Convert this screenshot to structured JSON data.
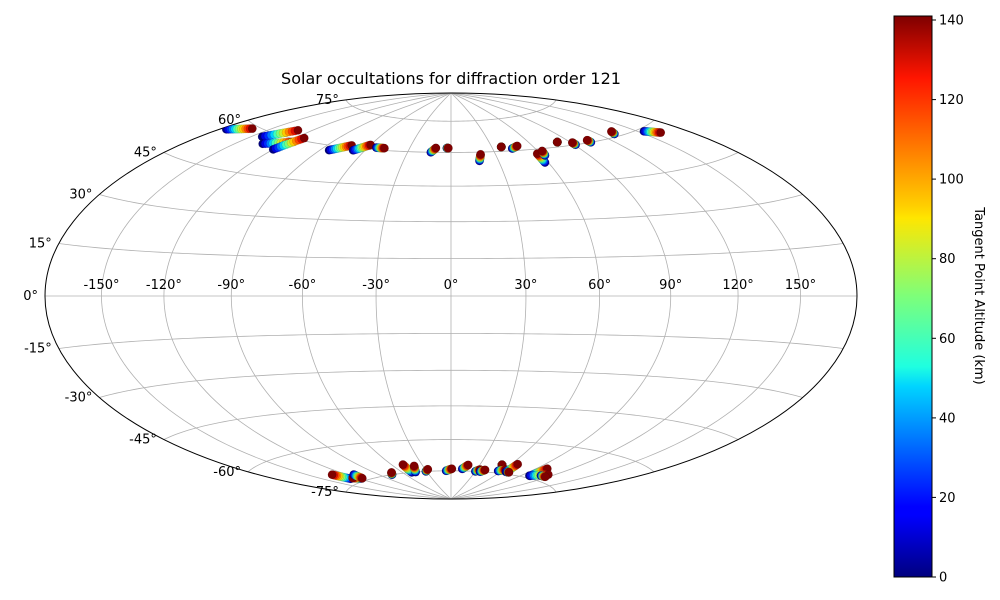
{
  "chart_data": {
    "type": "scatter",
    "projection": "hammer",
    "title": "Solar occultations for diffraction order 121",
    "xlabel": "",
    "ylabel": "",
    "grid": true,
    "xlim": [
      -180,
      180
    ],
    "ylim": [
      -90,
      90
    ],
    "lon_ticks": [
      -150,
      -120,
      -90,
      -60,
      -30,
      0,
      30,
      60,
      90,
      120,
      150
    ],
    "lon_tick_labels": [
      "-150°",
      "-120°",
      "-90°",
      "-60°",
      "-30°",
      "0°",
      "30°",
      "60°",
      "90°",
      "120°",
      "150°"
    ],
    "lat_ticks": [
      75,
      60,
      45,
      30,
      15,
      0,
      -15,
      -30,
      -45,
      -60,
      -75
    ],
    "lat_tick_labels": [
      "75°",
      "60°",
      "45°",
      "30°",
      "15°",
      "0°",
      "-15°",
      "-30°",
      "-45°",
      "-60°",
      "-75°"
    ],
    "colorbar": {
      "label": "Tangent Point Altitude (km)",
      "range": [
        0,
        141
      ],
      "ticks": [
        0,
        20,
        40,
        60,
        80,
        100,
        120,
        140
      ],
      "tick_labels": [
        "0",
        "20",
        "40",
        "60",
        "80",
        "100",
        "120",
        "140"
      ],
      "colormap": "jet"
    },
    "tracks": [
      {
        "lon0": -176,
        "lat0": 56,
        "lon1": -162,
        "lat1": 59
      },
      {
        "lon0": -143,
        "lat0": 58,
        "lon1": -130,
        "lat1": 63
      },
      {
        "lon0": -133,
        "lat0": 56,
        "lon1": -116,
        "lat1": 59
      },
      {
        "lon0": -120,
        "lat0": 55,
        "lon1": -114,
        "lat1": 61
      },
      {
        "lon0": -84,
        "lat0": 58,
        "lon1": -73,
        "lat1": 61
      },
      {
        "lon0": -68,
        "lat0": 59,
        "lon1": -60,
        "lat1": 62
      },
      {
        "lon0": -54,
        "lat0": 61,
        "lon1": -48,
        "lat1": 61
      },
      {
        "lon0": -14,
        "lat0": 60,
        "lon1": -11,
        "lat1": 62
      },
      {
        "lon0": -3,
        "lat0": 62,
        "lon1": -2,
        "lat1": 62
      },
      {
        "lon0": 18,
        "lat0": 56,
        "lon1": 20,
        "lat1": 59
      },
      {
        "lon0": 37,
        "lat0": 62,
        "lon1": 37,
        "lat1": 62
      },
      {
        "lon0": 44,
        "lat0": 61,
        "lon1": 49,
        "lat1": 62
      },
      {
        "lon0": 58,
        "lat0": 54,
        "lon1": 58,
        "lat1": 58
      },
      {
        "lon0": 62,
        "lat0": 57,
        "lon1": 63,
        "lat1": 59
      },
      {
        "lon0": 81,
        "lat0": 62,
        "lon1": 81,
        "lat1": 62
      },
      {
        "lon0": 91,
        "lat0": 60,
        "lon1": 91,
        "lat1": 61
      },
      {
        "lon0": 104,
        "lat0": 60,
        "lon1": 104,
        "lat1": 61
      },
      {
        "lon0": 131,
        "lat0": 61,
        "lon1": 133,
        "lat1": 62
      },
      {
        "lon0": 154,
        "lat0": 59,
        "lon1": 162,
        "lat1": 57
      },
      {
        "lon0": -128,
        "lat0": -73,
        "lon1": -132,
        "lat1": -70
      },
      {
        "lon0": -117,
        "lat0": -74,
        "lon1": -124,
        "lat1": -73
      },
      {
        "lon0": -114,
        "lat0": -72,
        "lon1": -116,
        "lat1": -74
      },
      {
        "lon0": -76,
        "lat0": -75,
        "lon1": -72,
        "lat1": -74
      },
      {
        "lon0": -49,
        "lat0": -75,
        "lon1": -49,
        "lat1": -71
      },
      {
        "lon0": -44,
        "lat0": -75,
        "lon1": -39,
        "lat1": -72
      },
      {
        "lon0": -31,
        "lat0": -75,
        "lon1": -27,
        "lat1": -74
      },
      {
        "lon0": -6,
        "lat0": -75,
        "lon1": 1,
        "lat1": -74
      },
      {
        "lon0": 13,
        "lat0": -74,
        "lon1": 18,
        "lat1": -72
      },
      {
        "lon0": 30,
        "lat0": -75,
        "lon1": 34,
        "lat1": -74
      },
      {
        "lon0": 36,
        "lat0": -75,
        "lon1": 40,
        "lat1": -74
      },
      {
        "lon0": 52,
        "lat0": -71,
        "lon1": 52,
        "lat1": -71
      },
      {
        "lon0": 56,
        "lat0": -74,
        "lon1": 62,
        "lat1": -73
      },
      {
        "lon0": 66,
        "lat0": -74,
        "lon1": 66,
        "lat1": -70
      },
      {
        "lon0": 68,
        "lat0": -74,
        "lon1": 70,
        "lat1": -74
      },
      {
        "lon0": 100,
        "lat0": -74,
        "lon1": 100,
        "lat1": -70
      },
      {
        "lon0": 99,
        "lat0": -74,
        "lon1": 114,
        "lat1": -72
      },
      {
        "lon0": 110,
        "lat0": -73,
        "lon1": 117,
        "lat1": -73
      }
    ]
  }
}
